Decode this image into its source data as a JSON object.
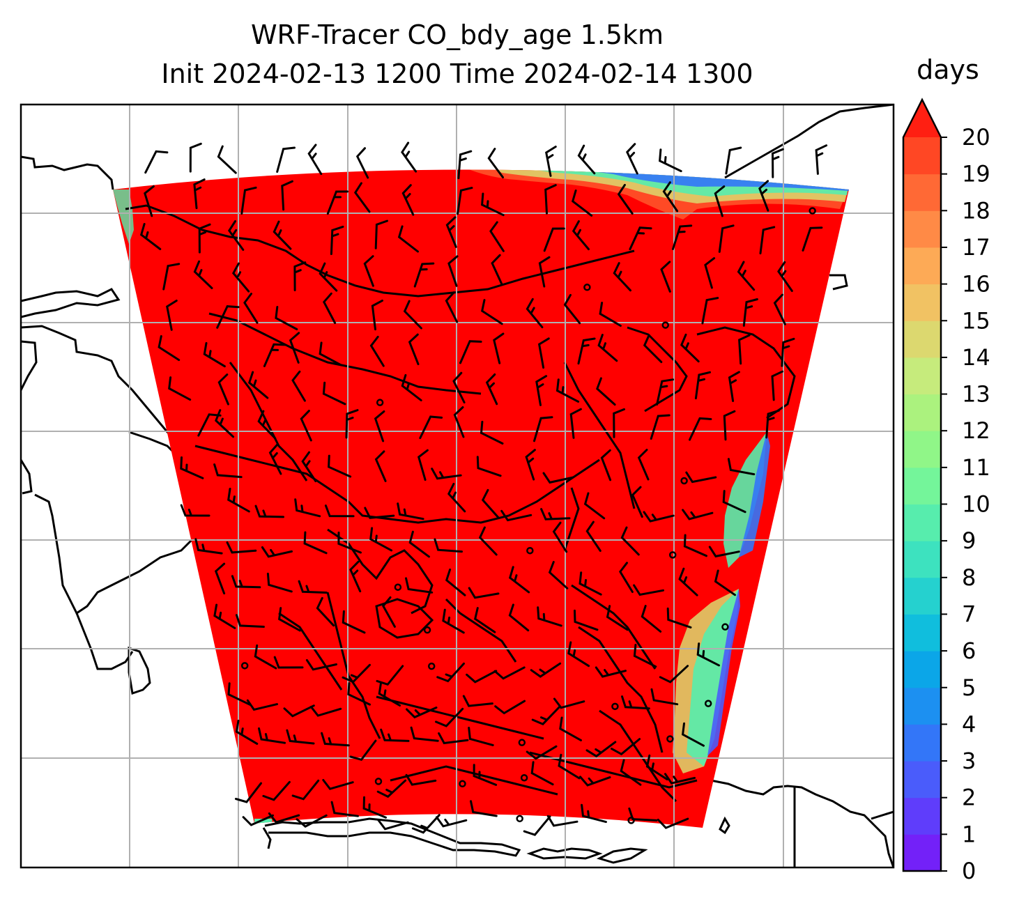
{
  "title": {
    "line1": "WRF-Tracer CO_bdy_age 1.5km",
    "line2": "Init 2024-02-13 1200 Time 2024-02-14 1300"
  },
  "colorbar": {
    "label": "days",
    "min": 0,
    "max": 20,
    "ticks": [
      "0",
      "1",
      "2",
      "3",
      "4",
      "5",
      "6",
      "7",
      "8",
      "9",
      "10",
      "11",
      "12",
      "13",
      "14",
      "15",
      "16",
      "17",
      "18",
      "19",
      "20"
    ],
    "extend": "max",
    "colors": [
      "#7321f8",
      "#5f3dfb",
      "#4a5cfb",
      "#3376f8",
      "#1c90f1",
      "#0ba6e8",
      "#10bedd",
      "#25d1cf",
      "#3de2bf",
      "#57edad",
      "#74f59a",
      "#90f688",
      "#abf27e",
      "#c6eb7c",
      "#dcd86f",
      "#f1c263",
      "#fdaa56",
      "#ff8a46",
      "#ff6935",
      "#ff4724",
      "#ff1f12"
    ],
    "over_color": "#ff0000"
  },
  "map": {
    "field_color": "#ff0000",
    "gridlines": true,
    "coastlines": true,
    "wind_barbs": true
  }
}
